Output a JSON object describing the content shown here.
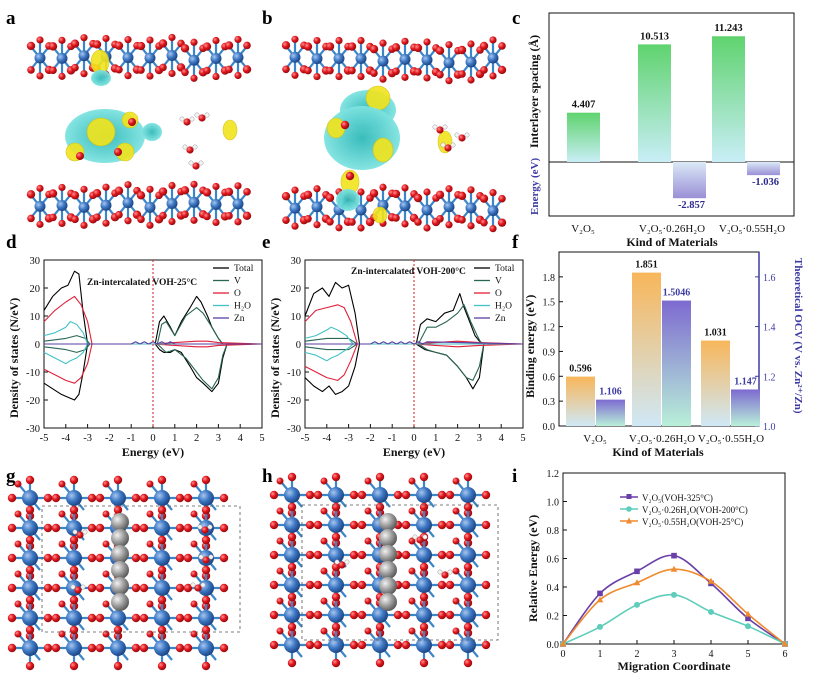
{
  "panel_labels": {
    "a": "a",
    "b": "b",
    "c": "c",
    "d": "d",
    "e": "e",
    "f": "f",
    "g": "g",
    "h": "h",
    "i": "i"
  },
  "colors": {
    "cyan": "#2ec4c4",
    "yellow": "#f2e41c",
    "v_blue": "#2f6db5",
    "o_red": "#d9141b",
    "bar_green": "#6ed68a",
    "bar_blue_light": "#b5d9f0",
    "bar_orange": "#f6b760",
    "bar_purple": "#8a76c8",
    "axis_blue": "#3d3ba3",
    "total": "#000000",
    "v": "#2a6655",
    "o": "#e0203a",
    "h2o": "#43c2c6",
    "zn": "#5a3fa0"
  },
  "chart_data": [
    {
      "id": "c",
      "type": "bar",
      "title": "",
      "categories": [
        "V₂O₅",
        "V₂O₅·0.26H₂O",
        "V₂O₅·0.55H₂O"
      ],
      "series": [
        {
          "name": "Interlayer spacing (Å)",
          "values": [
            4.407,
            10.513,
            11.243
          ]
        },
        {
          "name": "Energy (eV)",
          "values": [
            null,
            -2.857,
            -1.036
          ]
        }
      ],
      "value_labels": [
        "4.407",
        "10.513",
        "11.243",
        "-2.857",
        "-1.036"
      ],
      "xlabel": "Kind of Materials",
      "ylabel_top": "Interlayer spacing (Å)",
      "ylabel_bottom": "Energy (eV)"
    },
    {
      "id": "d",
      "type": "line",
      "title": "Zn-intercalated VOH-25°C",
      "xlabel": "Energy (eV)",
      "ylabel": "Density of states (N/eV)",
      "xlim": [
        -5,
        5
      ],
      "ylim": [
        -30,
        30
      ],
      "xticks": [
        "-5",
        "-4",
        "-3",
        "-2",
        "-1",
        "0",
        "1",
        "2",
        "3",
        "4",
        "5"
      ],
      "yticks": [
        "-30",
        "-20",
        "-10",
        "0",
        "10",
        "20",
        "30"
      ],
      "legend": [
        "Total",
        "V",
        "O",
        "H₂O",
        "Zn"
      ],
      "series": [
        {
          "name": "Total",
          "x": [
            -5,
            -4.6,
            -4.2,
            -3.9,
            -3.6,
            -3.4,
            -3.2,
            -3.0,
            -2.5,
            -1.0,
            -0.1,
            0.1,
            0.3,
            0.5,
            0.8,
            1.0,
            1.3,
            1.7,
            2.0,
            2.2,
            2.5,
            2.7,
            3.0,
            3.2,
            3.4,
            3.6,
            4.0,
            5.0
          ],
          "y": [
            12,
            17,
            20,
            21,
            26,
            25,
            11,
            0,
            0,
            0,
            0,
            0,
            8,
            10,
            6,
            3,
            8,
            13,
            17,
            15,
            10,
            6,
            2,
            0,
            0,
            0,
            0,
            0
          ]
        },
        {
          "name": "Total-",
          "x": [
            -5,
            -4.6,
            -4.2,
            -3.9,
            -3.6,
            -3.4,
            -3.2,
            -3.0,
            -2.5,
            -1.0,
            -0.1,
            0.1,
            0.3,
            0.5,
            0.8,
            1.0,
            1.3,
            1.7,
            2.0,
            2.3,
            2.7,
            3.0,
            3.2,
            3.4,
            3.6,
            4.0,
            5.0
          ],
          "y": [
            -14,
            -16,
            -18,
            -19,
            -20,
            -18,
            -10,
            0,
            0,
            0,
            0,
            0,
            -2,
            -3,
            -3,
            -2,
            -3,
            -8,
            -12,
            -14,
            -17,
            -14,
            -5,
            0,
            0,
            0,
            0
          ]
        },
        {
          "name": "V",
          "x": [
            -5,
            -4,
            -3.5,
            -3.1,
            -2.9,
            0.2,
            0.4,
            0.6,
            1.0,
            1.5,
            2.0,
            2.3,
            2.7,
            3.0,
            3.2,
            3.4,
            5
          ],
          "y": [
            1,
            2,
            3,
            2,
            0,
            0,
            7,
            8,
            3,
            10,
            13,
            11,
            6,
            2,
            0,
            0,
            0
          ]
        },
        {
          "name": "V-",
          "x": [
            -5,
            -4,
            -3.5,
            -3.1,
            -2.9,
            0.2,
            0.6,
            1.0,
            1.5,
            2.0,
            2.3,
            2.7,
            3.0,
            3.2,
            3.4,
            5
          ],
          "y": [
            -1,
            -2,
            -3,
            -2,
            0,
            0,
            -3,
            -2,
            -5,
            -10,
            -13,
            -16,
            -12,
            -4,
            0,
            0
          ]
        },
        {
          "name": "O",
          "x": [
            -5,
            -4.5,
            -4,
            -3.6,
            -3.3,
            -3.0,
            -2.8,
            0,
            1,
            2,
            2.5,
            3,
            5
          ],
          "y": [
            8,
            12,
            15,
            17,
            14,
            8,
            0,
            0,
            0.5,
            1,
            1,
            0.5,
            0
          ]
        },
        {
          "name": "O-",
          "x": [
            -5,
            -4.5,
            -4,
            -3.6,
            -3.3,
            -3.0,
            -2.8,
            0,
            1,
            2,
            2.5,
            3,
            5
          ],
          "y": [
            -9,
            -11,
            -13,
            -14,
            -12,
            -7,
            0,
            0,
            -0.5,
            -1,
            -1,
            -0.5,
            0
          ]
        },
        {
          "name": "H2O",
          "x": [
            -5,
            -4.5,
            -4,
            -3.8,
            -3.5,
            -3.2,
            -3.0,
            0,
            5
          ],
          "y": [
            3,
            4,
            6,
            8,
            7,
            4,
            0,
            0,
            0
          ]
        },
        {
          "name": "H2O-",
          "x": [
            -5,
            -4.5,
            -4,
            -3.8,
            -3.5,
            -3.2,
            -3.0,
            0,
            5
          ],
          "y": [
            -3,
            -5,
            -7,
            -6,
            -5,
            -3,
            0,
            0,
            0
          ]
        },
        {
          "name": "Zn",
          "x": [
            -5,
            -1.0,
            -0.8,
            -0.6,
            -0.4,
            -0.2,
            0,
            0.2,
            0.4,
            0.6,
            0.8,
            1.0,
            5
          ],
          "y": [
            0,
            0,
            0.8,
            0,
            0.8,
            0,
            0.8,
            0,
            0.8,
            0,
            0.8,
            0,
            0
          ]
        }
      ]
    },
    {
      "id": "e",
      "type": "line",
      "title": "Zn-intercalated VOH-200°C",
      "xlabel": "Energy (eV)",
      "ylabel": "Density of states (N/eV)",
      "xlim": [
        -5,
        5
      ],
      "ylim": [
        -30,
        30
      ],
      "xticks": [
        "-5",
        "-4",
        "-3",
        "-2",
        "-1",
        "0",
        "1",
        "2",
        "3",
        "4",
        "5"
      ],
      "yticks": [
        "-30",
        "-20",
        "-10",
        "0",
        "10",
        "20",
        "30"
      ],
      "legend": [
        "Total",
        "V",
        "O",
        "H₂O",
        "Zn"
      ],
      "series": [
        {
          "name": "Total",
          "x": [
            -5,
            -4.6,
            -4.2,
            -3.9,
            -3.6,
            -3.3,
            -3.0,
            -2.7,
            -2.5,
            -1.0,
            0.1,
            0.3,
            0.6,
            1.0,
            1.4,
            1.8,
            2.1,
            2.3,
            2.6,
            2.8,
            3.0,
            3.2,
            5
          ],
          "y": [
            10,
            18,
            20,
            17,
            22,
            20,
            21,
            11,
            0,
            0,
            0,
            7,
            9,
            8,
            11,
            12,
            18,
            13,
            7,
            3,
            1,
            0,
            0
          ]
        },
        {
          "name": "Total-",
          "x": [
            -5,
            -4.6,
            -4.2,
            -3.9,
            -3.6,
            -3.3,
            -3.0,
            -2.7,
            -2.5,
            -1.0,
            0.1,
            0.5,
            1.0,
            1.5,
            2.0,
            2.4,
            2.7,
            3.0,
            3.2,
            5
          ],
          "y": [
            -12,
            -15,
            -17,
            -15,
            -18,
            -17,
            -15,
            -8,
            0,
            0,
            0,
            -2,
            -3,
            -4,
            -8,
            -12,
            -16,
            -12,
            0,
            0
          ]
        },
        {
          "name": "V",
          "x": [
            -5,
            -4,
            -3.5,
            -3,
            -2.6,
            0.2,
            0.6,
            1.0,
            1.5,
            2.0,
            2.3,
            2.6,
            2.9,
            3.1,
            5
          ],
          "y": [
            1,
            2,
            2,
            2,
            0,
            0,
            6,
            6,
            8,
            11,
            14,
            8,
            3,
            0,
            0
          ]
        },
        {
          "name": "V-",
          "x": [
            -5,
            -4,
            -3.5,
            -3,
            -2.6,
            0.2,
            0.6,
            1.0,
            1.5,
            2.0,
            2.4,
            2.7,
            3.0,
            3.2,
            5
          ],
          "y": [
            -1,
            -2,
            -2,
            -2,
            0,
            0,
            -2,
            -3,
            -4,
            -8,
            -12,
            -13,
            -8,
            0,
            0
          ]
        },
        {
          "name": "O",
          "x": [
            -5,
            -4.5,
            -4,
            -3.5,
            -3.2,
            -2.9,
            -2.6,
            0,
            1,
            2,
            3,
            5
          ],
          "y": [
            8,
            12,
            13,
            14,
            13,
            8,
            0,
            0,
            0.5,
            1,
            0.5,
            0
          ]
        },
        {
          "name": "O-",
          "x": [
            -5,
            -4.5,
            -4,
            -3.5,
            -3.2,
            -2.9,
            -2.6,
            0,
            1,
            2,
            3,
            5
          ],
          "y": [
            -8,
            -10,
            -12,
            -13,
            -11,
            -6,
            0,
            0,
            -0.5,
            -1,
            -0.5,
            0
          ]
        },
        {
          "name": "H2O",
          "x": [
            -5,
            -4.5,
            -4,
            -3.8,
            -3.5,
            -3.1,
            -2.8,
            0,
            5
          ],
          "y": [
            2,
            3,
            5,
            6,
            5,
            3,
            0,
            0,
            0
          ]
        },
        {
          "name": "H2O-",
          "x": [
            -5,
            -4.5,
            -4,
            -3.8,
            -3.5,
            -3.1,
            -2.8,
            0,
            5
          ],
          "y": [
            -3,
            -4,
            -6,
            -5,
            -4,
            -2,
            0,
            0,
            0
          ]
        },
        {
          "name": "Zn",
          "x": [
            -5,
            -2.0,
            -1.8,
            -1.6,
            -1.4,
            -1.2,
            -1.0,
            -0.8,
            -0.6,
            -0.4,
            -0.2,
            0,
            0.2,
            0.4,
            0.6,
            5
          ],
          "y": [
            0,
            0,
            0.8,
            0,
            0.8,
            0,
            0.8,
            0,
            0.8,
            0,
            0.8,
            0,
            0.8,
            0,
            0.8,
            0
          ]
        }
      ]
    },
    {
      "id": "f",
      "type": "bar",
      "categories": [
        "V₂O₅",
        "V₂O₅·0.26H₂O",
        "V₂O₅·0.55H₂O"
      ],
      "series": [
        {
          "name": "Binding energy (eV)",
          "values": [
            0.596,
            1.851,
            1.031
          ]
        },
        {
          "name": "Theoretical OCV (V vs. Zn²⁺/Zn)",
          "values": [
            1.106,
            1.5046,
            1.147
          ]
        }
      ],
      "value_labels": [
        "0.596",
        "1.106",
        "1.851",
        "1.5046",
        "1.031",
        "1.147"
      ],
      "xlabel": "Kind of Materials",
      "ylabel_left": "Binding energy (eV)",
      "ylabel_right": "Theoretical OCV (V vs. Zn²⁺/Zn)",
      "ylim_left": [
        0,
        2.1
      ],
      "ylim_right": [
        1.0,
        1.7
      ],
      "yticks_left": [
        "0.0",
        "0.3",
        "0.6",
        "0.9",
        "1.2",
        "1.5",
        "1.8"
      ],
      "yticks_right": [
        "1.0",
        "1.2",
        "1.4",
        "1.6"
      ]
    },
    {
      "id": "i",
      "type": "line",
      "xlabel": "Migration Coordinate",
      "ylabel": "Relative Energy (eV)",
      "xlim": [
        0,
        6
      ],
      "ylim": [
        0,
        1.2
      ],
      "xticks": [
        "0",
        "1",
        "2",
        "3",
        "4",
        "5",
        "6"
      ],
      "yticks": [
        "0.0",
        "0.2",
        "0.4",
        "0.6",
        "0.8",
        "1.0",
        "1.2"
      ],
      "x": [
        0,
        1,
        2,
        3,
        4,
        5,
        6
      ],
      "series": [
        {
          "name": "V₂O₅(VOH-325°C)",
          "values": [
            0,
            0.355,
            0.51,
            0.62,
            0.425,
            0.18,
            0
          ],
          "color": "#6a3fa8",
          "marker": "square"
        },
        {
          "name": "V₂O₅·0.26H₂O(VOH-200°C)",
          "values": [
            0,
            0.12,
            0.275,
            0.345,
            0.225,
            0.125,
            0
          ],
          "color": "#5fcdbb",
          "marker": "circle"
        },
        {
          "name": "V₂O₅·0.55H₂O(VOH-25°C)",
          "values": [
            0,
            0.31,
            0.43,
            0.525,
            0.44,
            0.21,
            0
          ],
          "color": "#f08a2e",
          "marker": "triangle"
        }
      ]
    }
  ],
  "axis_texts": {
    "c_xlabel": "Kind of Materials",
    "f_xlabel": "Kind of Materials",
    "i_xlabel": "Migration Coordinate",
    "i_ylabel": "Relative Energy (eV)",
    "d_xlabel": "Energy (eV)",
    "e_xlabel": "Energy (eV)",
    "d_ylabel": "Density of states (N/eV)",
    "e_ylabel": "Density of states (N/eV)"
  }
}
